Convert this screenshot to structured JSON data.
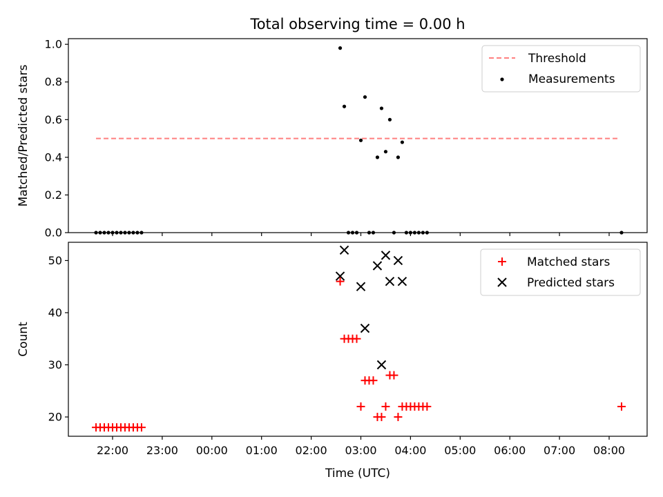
{
  "chart_data": {
    "title": "Total observing time = 0.00 h",
    "xlabel": "Time (UTC)",
    "x_ticks": [
      "22:00",
      "23:00",
      "00:00",
      "01:00",
      "02:00",
      "03:00",
      "04:00",
      "05:00",
      "06:00",
      "07:00",
      "08:00"
    ],
    "panels": [
      {
        "type": "scatter",
        "ylabel": "Matched/Predicted stars",
        "ylim": [
          0,
          1.03
        ],
        "y_ticks": [
          "0.0",
          "0.2",
          "0.4",
          "0.6",
          "0.8",
          "1.0"
        ],
        "y_tick_values": [
          0,
          0.2,
          0.4,
          0.6,
          0.8,
          1.0
        ],
        "legend": "top-right",
        "series": [
          {
            "name": "Threshold",
            "kind": "dashed-line",
            "color": "#ff7f7f",
            "x": [
              "21:40",
              "08:10"
            ],
            "y": [
              0.5,
              0.5
            ]
          },
          {
            "name": "Measurements",
            "kind": "dots",
            "color": "#000000",
            "x": [
              "21:40",
              "21:45",
              "21:50",
              "21:55",
              "22:00",
              "22:05",
              "22:10",
              "22:15",
              "22:20",
              "22:25",
              "22:30",
              "22:35",
              "02:35",
              "02:40",
              "02:45",
              "02:50",
              "02:55",
              "03:00",
              "03:05",
              "03:10",
              "03:15",
              "03:20",
              "03:25",
              "03:30",
              "03:35",
              "03:40",
              "03:45",
              "03:50",
              "03:55",
              "04:00",
              "04:05",
              "04:10",
              "04:15",
              "04:20",
              "08:15"
            ],
            "y": [
              0,
              0,
              0,
              0,
              0,
              0,
              0,
              0,
              0,
              0,
              0,
              0,
              0.98,
              0.67,
              0,
              0,
              0,
              0.49,
              0.72,
              0,
              0,
              0.4,
              0.66,
              0.43,
              0.6,
              0,
              0.4,
              0.48,
              0,
              0,
              0,
              0,
              0,
              0,
              0
            ]
          }
        ]
      },
      {
        "type": "scatter",
        "ylabel": "Count",
        "ylim": [
          16.3,
          53.5
        ],
        "y_ticks": [
          "20",
          "30",
          "40",
          "50"
        ],
        "y_tick_values": [
          20,
          30,
          40,
          50
        ],
        "legend": "top-right",
        "series": [
          {
            "name": "Matched stars",
            "kind": "plus",
            "color": "#ff0000",
            "x": [
              "21:40",
              "21:45",
              "21:50",
              "21:55",
              "22:00",
              "22:05",
              "22:10",
              "22:15",
              "22:20",
              "22:25",
              "22:30",
              "22:35",
              "02:35",
              "02:40",
              "02:45",
              "02:50",
              "02:55",
              "03:00",
              "03:05",
              "03:10",
              "03:15",
              "03:20",
              "03:25",
              "03:30",
              "03:35",
              "03:40",
              "03:45",
              "03:50",
              "03:55",
              "04:00",
              "04:05",
              "04:10",
              "04:15",
              "04:20",
              "08:15"
            ],
            "y": [
              18,
              18,
              18,
              18,
              18,
              18,
              18,
              18,
              18,
              18,
              18,
              18,
              46,
              35,
              35,
              35,
              35,
              22,
              27,
              27,
              27,
              20,
              20,
              22,
              28,
              28,
              20,
              22,
              22,
              22,
              22,
              22,
              22,
              22,
              22
            ]
          },
          {
            "name": "Predicted stars",
            "kind": "cross",
            "color": "#000000",
            "x": [
              "02:35",
              "02:40",
              "03:00",
              "03:05",
              "03:20",
              "03:25",
              "03:30",
              "03:35",
              "03:45",
              "03:50"
            ],
            "y": [
              47,
              52,
              45,
              37,
              49,
              30,
              51,
              46,
              50,
              46
            ]
          }
        ]
      }
    ]
  }
}
